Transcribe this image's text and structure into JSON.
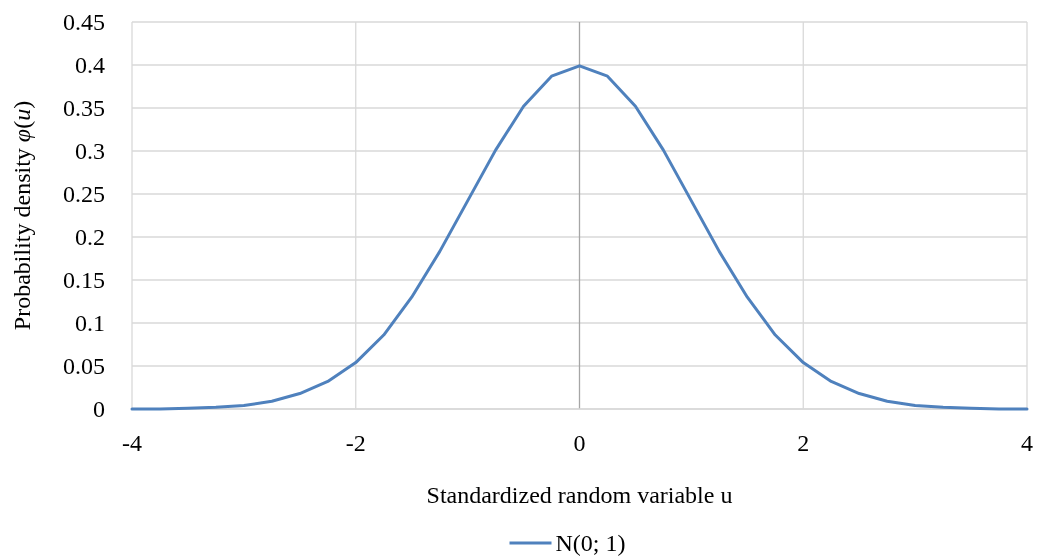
{
  "chart_data": {
    "type": "line",
    "xlabel": "Standardized random variable u",
    "ylabel": "Probability density φ(u)",
    "x": [
      -4,
      -3.75,
      -3.5,
      -3.25,
      -3,
      -2.75,
      -2.5,
      -2.25,
      -2,
      -1.75,
      -1.5,
      -1.25,
      -1,
      -0.75,
      -0.5,
      -0.25,
      0,
      0.25,
      0.5,
      0.75,
      1,
      1.25,
      1.5,
      1.75,
      2,
      2.25,
      2.5,
      2.75,
      3,
      3.25,
      3.5,
      3.75,
      4
    ],
    "series": [
      {
        "name": "N(0; 1)",
        "color": "#4f81bd",
        "values": [
          0,
          0,
          0.001,
          0.002,
          0.004,
          0.009,
          0.018,
          0.032,
          0.054,
          0.086,
          0.13,
          0.183,
          0.242,
          0.301,
          0.352,
          0.387,
          0.399,
          0.387,
          0.352,
          0.301,
          0.242,
          0.183,
          0.13,
          0.086,
          0.054,
          0.032,
          0.018,
          0.009,
          0.004,
          0.002,
          0.001,
          0,
          0
        ]
      }
    ],
    "xlim": [
      -4,
      4
    ],
    "xticks": [
      -4,
      -2,
      0,
      2,
      4
    ],
    "ylim": [
      0,
      0.45
    ],
    "yticks": [
      0,
      0.05,
      0.1,
      0.15,
      0.2,
      0.25,
      0.3,
      0.35,
      0.4,
      0.45
    ],
    "grid": true,
    "legend": "bottom",
    "marker": "none",
    "line_style": "solid"
  }
}
